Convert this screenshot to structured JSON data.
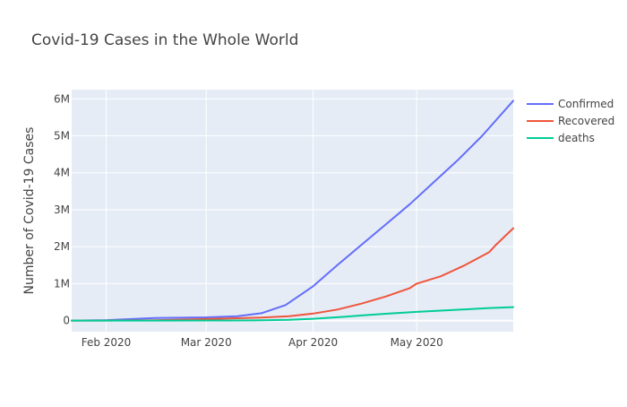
{
  "chart_data": {
    "type": "line",
    "title": "Covid-19 Cases in the Whole World",
    "xlabel": "",
    "ylabel": "Number of Covid-19 Cases",
    "x_axis": {
      "type": "date",
      "range": [
        "2020-01-22",
        "2020-05-29"
      ],
      "ticks": [
        {
          "date": "2020-02-01",
          "label": "Feb 2020"
        },
        {
          "date": "2020-03-01",
          "label": "Mar 2020"
        },
        {
          "date": "2020-04-01",
          "label": "Apr 2020"
        },
        {
          "date": "2020-05-01",
          "label": "May 2020"
        }
      ]
    },
    "y_axis": {
      "range": [
        -300000,
        6250000
      ],
      "ticks": [
        {
          "value": 0,
          "label": "0"
        },
        {
          "value": 1000000,
          "label": "1M"
        },
        {
          "value": 2000000,
          "label": "2M"
        },
        {
          "value": 3000000,
          "label": "3M"
        },
        {
          "value": 4000000,
          "label": "4M"
        },
        {
          "value": 5000000,
          "label": "5M"
        },
        {
          "value": 6000000,
          "label": "6M"
        }
      ]
    },
    "grid": true,
    "legend_position": "top-right",
    "series": [
      {
        "name": "Confirmed",
        "color": "#636efa",
        "points": [
          [
            "2020-01-22",
            1000
          ],
          [
            "2020-02-01",
            12000
          ],
          [
            "2020-02-15",
            69000
          ],
          [
            "2020-03-01",
            88000
          ],
          [
            "2020-03-10",
            120000
          ],
          [
            "2020-03-17",
            200000
          ],
          [
            "2020-03-24",
            420000
          ],
          [
            "2020-04-01",
            930000
          ],
          [
            "2020-04-08",
            1500000
          ],
          [
            "2020-04-15",
            2050000
          ],
          [
            "2020-04-22",
            2600000
          ],
          [
            "2020-04-29",
            3150000
          ],
          [
            "2020-05-06",
            3750000
          ],
          [
            "2020-05-13",
            4350000
          ],
          [
            "2020-05-20",
            5000000
          ],
          [
            "2020-05-29",
            5950000
          ]
        ]
      },
      {
        "name": "Recovered",
        "color": "#ef553b",
        "points": [
          [
            "2020-01-22",
            0
          ],
          [
            "2020-02-01",
            300
          ],
          [
            "2020-02-15",
            10000
          ],
          [
            "2020-03-01",
            42000
          ],
          [
            "2020-03-17",
            80000
          ],
          [
            "2020-03-25",
            120000
          ],
          [
            "2020-04-01",
            190000
          ],
          [
            "2020-04-08",
            300000
          ],
          [
            "2020-04-15",
            460000
          ],
          [
            "2020-04-22",
            650000
          ],
          [
            "2020-04-29",
            880000
          ],
          [
            "2020-05-01",
            1000000
          ],
          [
            "2020-05-08",
            1200000
          ],
          [
            "2020-05-15",
            1500000
          ],
          [
            "2020-05-22",
            1850000
          ],
          [
            "2020-05-24",
            2050000
          ],
          [
            "2020-05-29",
            2500000
          ]
        ]
      },
      {
        "name": "deaths",
        "color": "#00cc96",
        "points": [
          [
            "2020-01-22",
            0
          ],
          [
            "2020-02-15",
            1500
          ],
          [
            "2020-03-01",
            3000
          ],
          [
            "2020-03-15",
            6000
          ],
          [
            "2020-03-25",
            20000
          ],
          [
            "2020-04-01",
            50000
          ],
          [
            "2020-04-08",
            90000
          ],
          [
            "2020-04-15",
            140000
          ],
          [
            "2020-04-22",
            185000
          ],
          [
            "2020-05-01",
            235000
          ],
          [
            "2020-05-08",
            270000
          ],
          [
            "2020-05-15",
            305000
          ],
          [
            "2020-05-22",
            340000
          ],
          [
            "2020-05-29",
            365000
          ]
        ]
      }
    ]
  }
}
